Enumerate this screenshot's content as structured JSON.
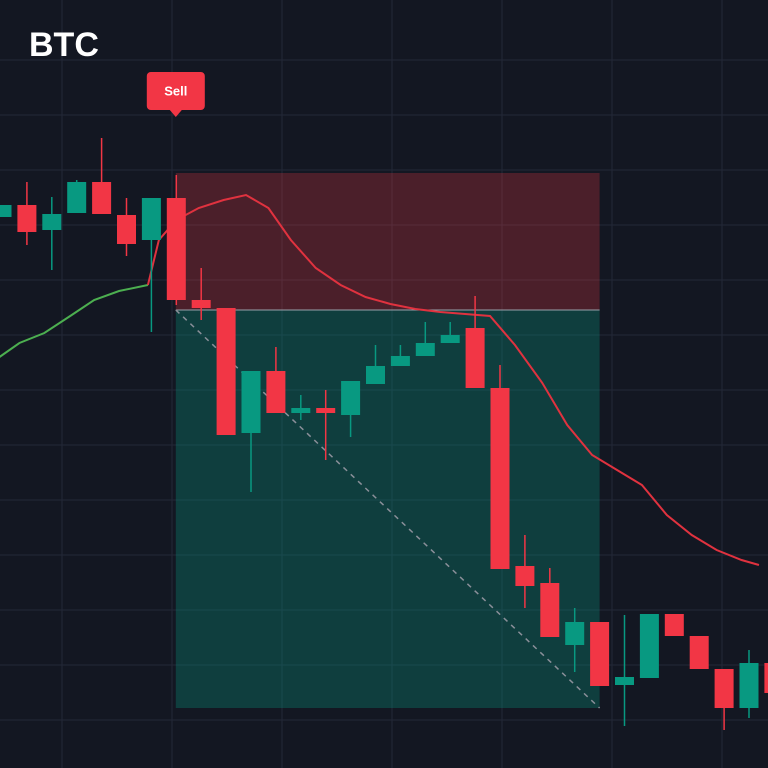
{
  "chart_data": {
    "type": "candlestick",
    "title": "BTC",
    "ylim": [
      0,
      768
    ],
    "up_color": "#089981",
    "down_color": "#f23645",
    "candles": {
      "open": [
        551,
        563,
        538,
        555,
        586,
        553,
        528,
        570,
        468,
        460,
        335,
        397,
        355,
        360,
        353,
        384,
        402,
        412,
        425,
        440,
        380,
        202,
        185,
        123,
        146,
        83,
        90,
        154,
        132,
        99,
        60,
        105
      ],
      "high": [
        563,
        586,
        571,
        588,
        630,
        570,
        570,
        593,
        500,
        460,
        397,
        421,
        373,
        378,
        387,
        423,
        423,
        446,
        446,
        472,
        403,
        233,
        200,
        160,
        146,
        153,
        154,
        154,
        132,
        99,
        118,
        105
      ],
      "low": [
        551,
        523,
        498,
        555,
        554,
        512,
        436,
        463,
        448,
        333,
        276,
        355,
        348,
        308,
        331,
        384,
        402,
        412,
        425,
        380,
        199,
        160,
        131,
        96,
        82,
        42,
        90,
        132,
        99,
        38,
        50,
        60
      ],
      "close": [
        563,
        536,
        554,
        586,
        554,
        524,
        570,
        468,
        460,
        333,
        397,
        355,
        360,
        355,
        387,
        402,
        412,
        425,
        433,
        380,
        199,
        182,
        131,
        146,
        82,
        91,
        154,
        132,
        99,
        60,
        105,
        75
      ]
    },
    "lines": [
      {
        "color": "#4caf50",
        "x": [
          -0.1,
          0.7,
          1.7,
          2.8,
          3.7,
          4.7,
          5.86
        ],
        "values": [
          411,
          425,
          435,
          453,
          468,
          477,
          483
        ]
      },
      {
        "color": "#e0323f",
        "x": [
          5.86,
          6.3,
          7,
          7.9,
          8.9,
          9.8,
          10.7,
          11.6,
          12.6,
          13.6,
          14.6,
          15.6,
          16.6,
          17.6,
          18.6,
          19.6,
          20.6,
          21.7,
          22.7,
          23.7,
          24.7,
          25.7,
          26.7,
          27.7,
          28.7,
          29.7,
          30.4
        ],
        "values": [
          483,
          528,
          548,
          560,
          568,
          573,
          560,
          528,
          500,
          483,
          471,
          464,
          459,
          456,
          454,
          452,
          423,
          385,
          343,
          313,
          298,
          283,
          253,
          233,
          218,
          208,
          203
        ]
      }
    ],
    "position": {
      "label": "Sell",
      "start": 6.98,
      "end": 24.0,
      "entry": 458,
      "stop": 595,
      "target": 60
    }
  }
}
